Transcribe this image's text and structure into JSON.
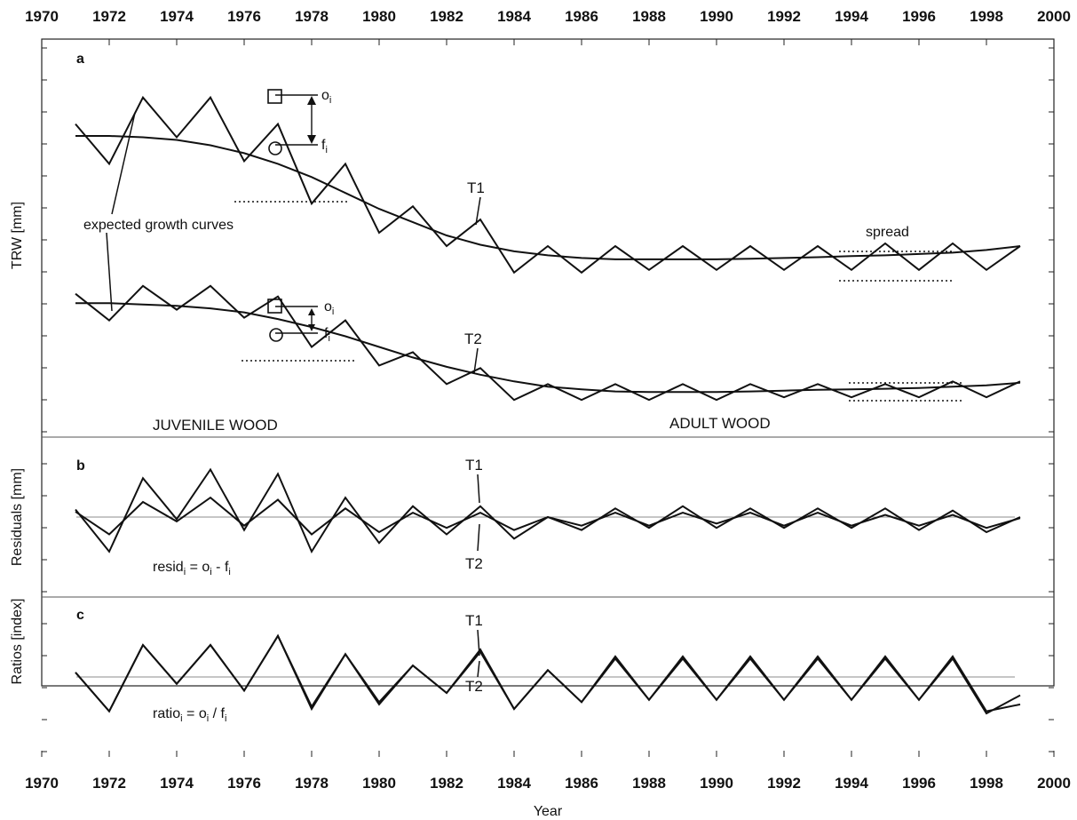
{
  "chart_data": [
    {
      "type": "line",
      "panel": "a",
      "ylabel": "TRW [mm]",
      "x": [
        1971,
        1972,
        1973,
        1974,
        1975,
        1976,
        1977,
        1978,
        1979,
        1980,
        1981,
        1982,
        1983,
        1984,
        1985,
        1986,
        1987,
        1988,
        1989,
        1990,
        1991,
        1992,
        1993,
        1994,
        1995,
        1996,
        1997,
        1998,
        1999
      ],
      "series": [
        {
          "name": "T1",
          "values": [
            11.8,
            10.3,
            12.8,
            11.3,
            12.8,
            10.4,
            11.8,
            8.8,
            10.3,
            7.7,
            8.7,
            7.2,
            8.2,
            6.2,
            7.2,
            6.2,
            7.2,
            6.3,
            7.2,
            6.3,
            7.2,
            6.3,
            7.2,
            6.3,
            7.3,
            6.3,
            7.3,
            6.3,
            7.2
          ]
        },
        {
          "name": "T1 expected growth curve",
          "values": [
            11.35,
            11.35,
            11.3,
            11.2,
            11.0,
            10.7,
            10.3,
            9.8,
            9.2,
            8.6,
            8.1,
            7.6,
            7.25,
            7.0,
            6.85,
            6.75,
            6.7,
            6.7,
            6.7,
            6.7,
            6.72,
            6.75,
            6.78,
            6.82,
            6.85,
            6.9,
            6.95,
            7.05,
            7.2
          ]
        },
        {
          "name": "T2",
          "values": [
            5.4,
            4.4,
            5.7,
            4.8,
            5.7,
            4.5,
            5.3,
            3.4,
            4.4,
            2.7,
            3.2,
            2.0,
            2.6,
            1.4,
            2.0,
            1.4,
            2.0,
            1.4,
            2.0,
            1.4,
            2.0,
            1.5,
            2.0,
            1.5,
            2.0,
            1.5,
            2.1,
            1.5,
            2.1
          ]
        },
        {
          "name": "T2 expected growth curve",
          "values": [
            5.05,
            5.05,
            5.0,
            4.95,
            4.85,
            4.7,
            4.45,
            4.15,
            3.8,
            3.4,
            3.0,
            2.65,
            2.35,
            2.1,
            1.9,
            1.8,
            1.72,
            1.7,
            1.7,
            1.7,
            1.72,
            1.75,
            1.78,
            1.8,
            1.82,
            1.85,
            1.9,
            1.95,
            2.05
          ]
        }
      ],
      "xlim": [
        1970,
        2000
      ],
      "ylim": [
        0,
        15
      ],
      "annotations": {
        "o1": "o",
        "f1": "f",
        "o2": "o",
        "f2": "f",
        "sub": "i",
        "curves": "expected growth curves",
        "t1": "T1",
        "t2": "T2",
        "spread": "spread",
        "juvenile": "JUVENILE WOOD",
        "adult": "ADULT WOOD"
      }
    },
    {
      "type": "line",
      "panel": "b",
      "ylabel": "Residuals [mm]",
      "x": [
        1971,
        1972,
        1973,
        1974,
        1975,
        1976,
        1977,
        1978,
        1979,
        1980,
        1981,
        1982,
        1983,
        1984,
        1985,
        1986,
        1987,
        1988,
        1989,
        1990,
        1991,
        1992,
        1993,
        1994,
        1995,
        1996,
        1997,
        1998,
        1999
      ],
      "series": [
        {
          "name": "T1",
          "values": [
            0.45,
            -1.5,
            1.9,
            0.0,
            2.3,
            -0.5,
            2.1,
            -1.5,
            1.0,
            -1.1,
            0.6,
            -0.7,
            0.6,
            -0.9,
            0.1,
            -0.5,
            0.5,
            -0.4,
            0.6,
            -0.4,
            0.5,
            -0.4,
            0.5,
            -0.4,
            0.5,
            -0.5,
            0.4,
            -0.6,
            0.1
          ]
        },
        {
          "name": "T2",
          "values": [
            0.35,
            -0.7,
            0.8,
            -0.1,
            1.0,
            -0.3,
            0.9,
            -0.7,
            0.5,
            -0.6,
            0.3,
            -0.4,
            0.3,
            -0.5,
            0.1,
            -0.3,
            0.3,
            -0.3,
            0.3,
            -0.2,
            0.3,
            -0.3,
            0.3,
            -0.3,
            0.2,
            -0.3,
            0.2,
            -0.4,
            0.05
          ]
        }
      ],
      "xlim": [
        1970,
        2000
      ],
      "ylim": [
        -3.6,
        3.8
      ],
      "annotations": {
        "t1": "T1",
        "t2": "T2",
        "formula_main": "resid",
        "formula_rest": " = o",
        "formula_minus": " - f",
        "sub": "i"
      }
    },
    {
      "type": "line",
      "panel": "c",
      "ylabel": "Ratios [index]",
      "x": [
        1971,
        1972,
        1973,
        1974,
        1975,
        1976,
        1977,
        1978,
        1979,
        1980,
        1981,
        1982,
        1983,
        1984,
        1985,
        1986,
        1987,
        1988,
        1989,
        1990,
        1991,
        1992,
        1993,
        1994,
        1995,
        1996,
        1997,
        1998,
        1999
      ],
      "series": [
        {
          "name": "T1",
          "values": [
            1.04,
            0.87,
            1.16,
            0.99,
            1.16,
            0.96,
            1.2,
            0.89,
            1.12,
            0.9,
            1.07,
            0.95,
            1.14,
            0.88,
            1.05,
            0.91,
            1.1,
            0.92,
            1.1,
            0.92,
            1.1,
            0.92,
            1.1,
            0.92,
            1.1,
            0.92,
            1.1,
            0.86,
            0.94
          ]
        },
        {
          "name": "T2",
          "values": [
            1.04,
            0.87,
            1.16,
            0.99,
            1.16,
            0.96,
            1.2,
            0.88,
            1.12,
            0.91,
            1.07,
            0.95,
            1.13,
            0.88,
            1.05,
            0.91,
            1.11,
            0.92,
            1.11,
            0.92,
            1.11,
            0.92,
            1.11,
            0.92,
            1.11,
            0.92,
            1.11,
            0.87,
            0.9
          ]
        }
      ],
      "xlim": [
        1970,
        2000
      ],
      "ylim": [
        0.67,
        1.37
      ],
      "annotations": {
        "t1": "T1",
        "t2": "T2",
        "formula_main": "ratio",
        "formula_rest": " = o",
        "formula_div": " / f",
        "sub": "i"
      }
    }
  ],
  "axes": {
    "xticks": [
      1970,
      1972,
      1974,
      1976,
      1978,
      1980,
      1982,
      1984,
      1986,
      1988,
      1990,
      1992,
      1994,
      1996,
      1998,
      2000
    ],
    "xlabel": "Year"
  }
}
